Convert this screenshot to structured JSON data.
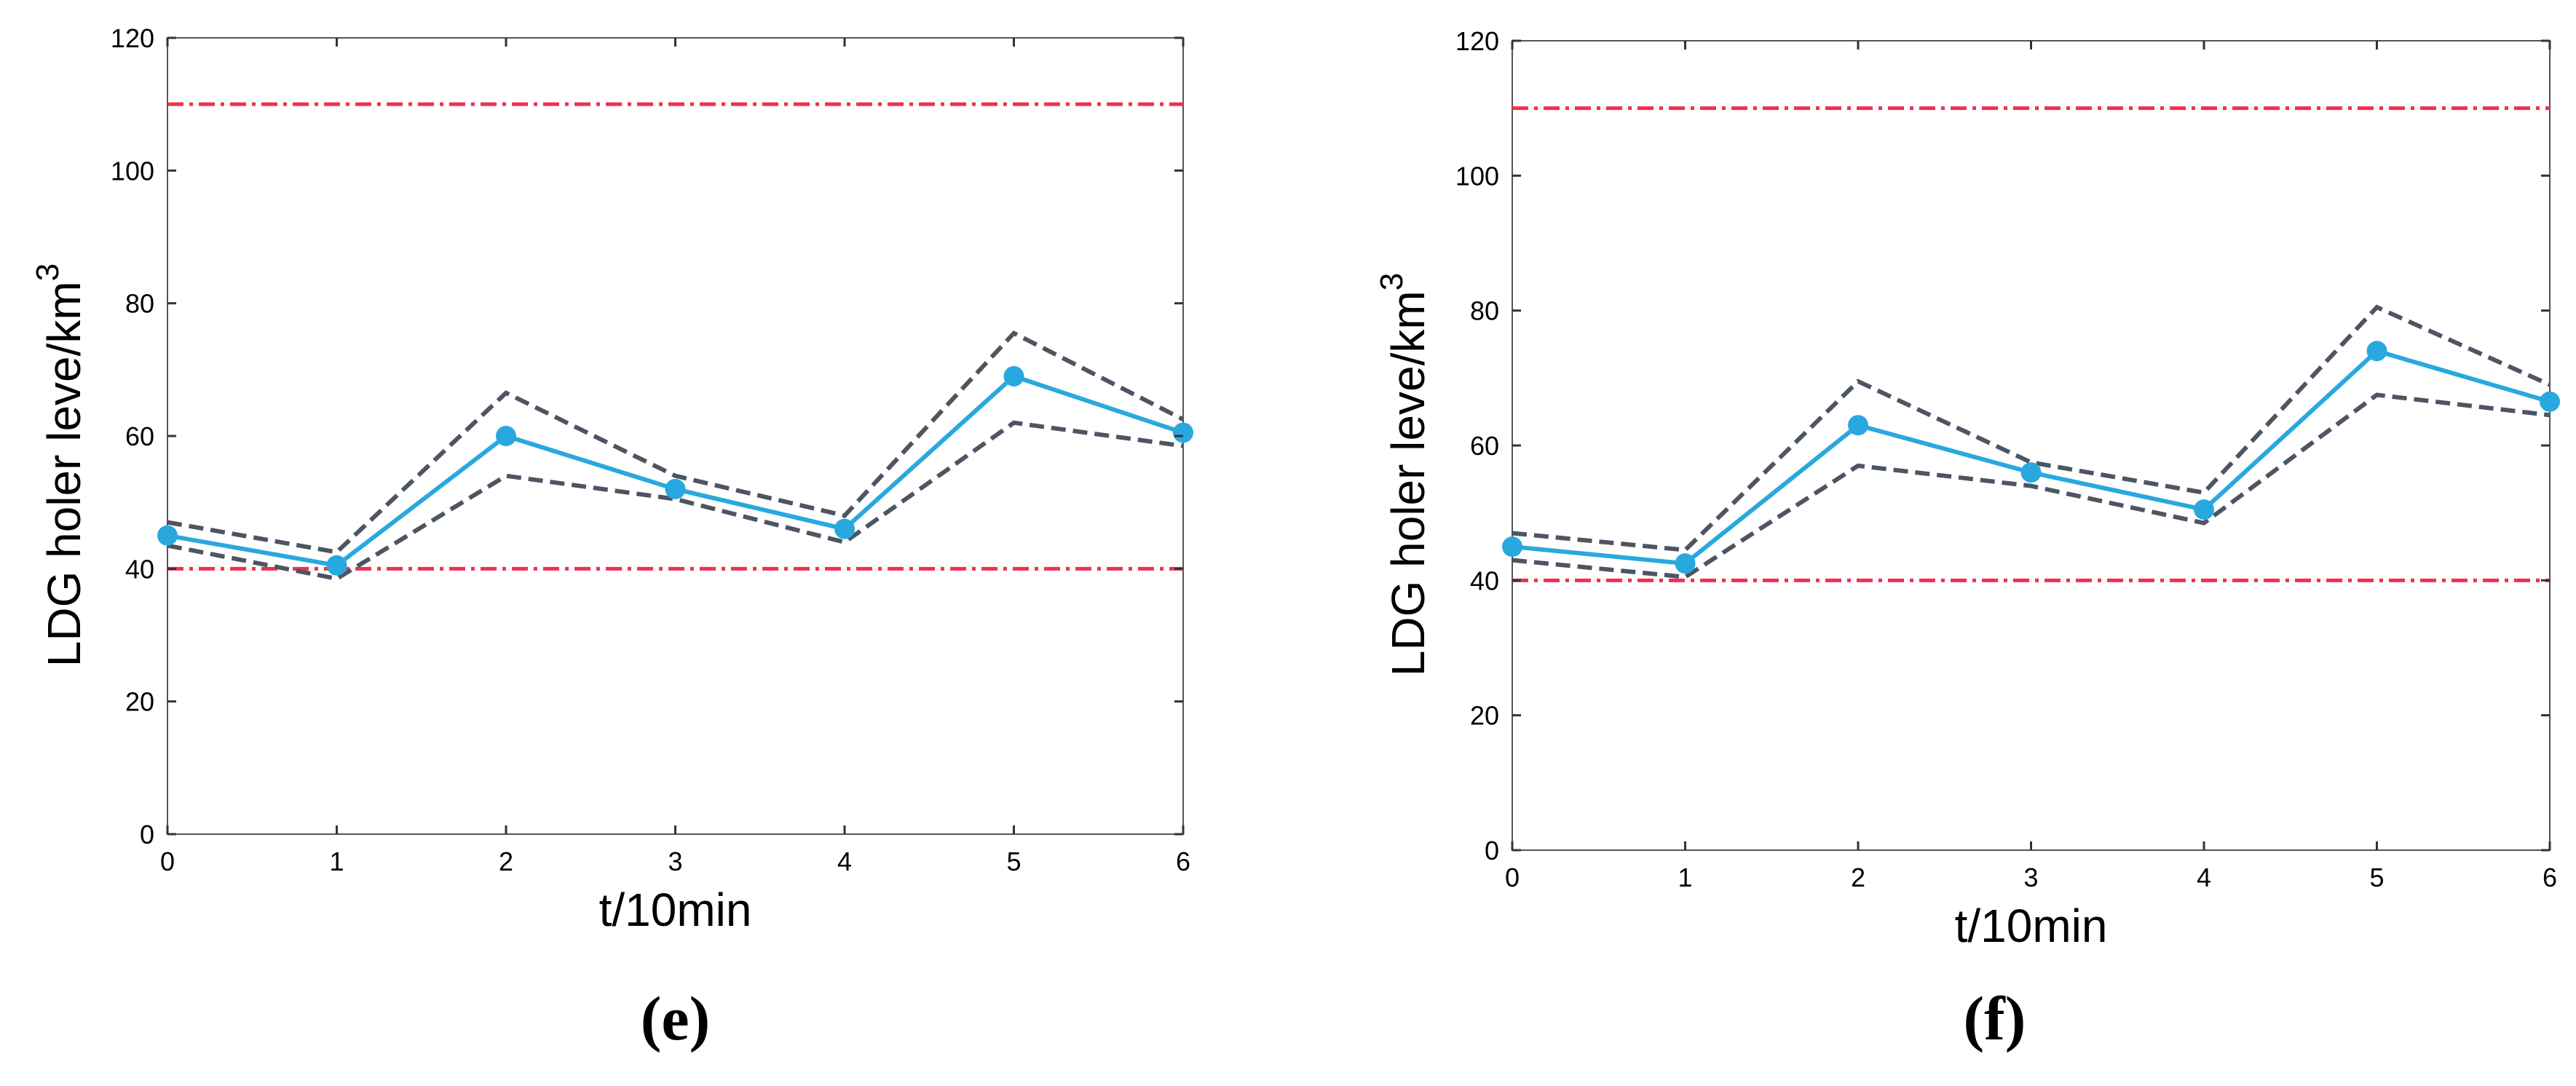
{
  "chart_data": [
    {
      "type": "line",
      "panel_label": "(e)",
      "xlabel": "t/10min",
      "ylabel": "LDG holer leve/km",
      "ylabel_superscript": "3",
      "xlim": [
        0,
        6
      ],
      "ylim": [
        0,
        120
      ],
      "x_ticks": [
        0,
        1,
        2,
        3,
        4,
        5,
        6
      ],
      "y_ticks": [
        0,
        20,
        40,
        60,
        80,
        100,
        120
      ],
      "grid": false,
      "x": [
        0,
        1,
        2,
        3,
        4,
        5,
        6
      ],
      "series": [
        {
          "name": "upper bound",
          "style": "dashed",
          "color": "#4d5563",
          "values": [
            47,
            42.5,
            66.5,
            54,
            48,
            75.5,
            62.5
          ]
        },
        {
          "name": "lower bound",
          "style": "dashed",
          "color": "#4d5563",
          "values": [
            43.5,
            38.5,
            54,
            50.5,
            44,
            62,
            58.5
          ]
        },
        {
          "name": "predicted level",
          "style": "solid-markers",
          "color": "#29a8df",
          "values": [
            45,
            40.5,
            60,
            52,
            46,
            69,
            60.5
          ]
        }
      ],
      "reference_lines": [
        {
          "name": "upper limit",
          "value": 110,
          "color": "#f0304f"
        },
        {
          "name": "lower limit",
          "value": 40,
          "color": "#f0304f"
        }
      ]
    },
    {
      "type": "line",
      "panel_label": "(f)",
      "xlabel": "t/10min",
      "ylabel": "LDG holer leve/km",
      "ylabel_superscript": "3",
      "xlim": [
        0,
        6
      ],
      "ylim": [
        0,
        120
      ],
      "x_ticks": [
        0,
        1,
        2,
        3,
        4,
        5,
        6
      ],
      "y_ticks": [
        0,
        20,
        40,
        60,
        80,
        100,
        120
      ],
      "grid": false,
      "x": [
        0,
        1,
        2,
        3,
        4,
        5,
        6
      ],
      "series": [
        {
          "name": "upper bound",
          "style": "dashed",
          "color": "#4d5563",
          "values": [
            47,
            44.5,
            69.5,
            57.5,
            53,
            80.5,
            69
          ]
        },
        {
          "name": "lower bound",
          "style": "dashed",
          "color": "#4d5563",
          "values": [
            43,
            40.5,
            57,
            54,
            48.5,
            67.5,
            64.5
          ]
        },
        {
          "name": "predicted level",
          "style": "solid-markers",
          "color": "#29a8df",
          "values": [
            45,
            42.5,
            63,
            56,
            50.5,
            74,
            66.5
          ]
        }
      ],
      "reference_lines": [
        {
          "name": "upper limit",
          "value": 110,
          "color": "#f0304f"
        },
        {
          "name": "lower limit",
          "value": 40,
          "color": "#f0304f"
        }
      ]
    }
  ]
}
